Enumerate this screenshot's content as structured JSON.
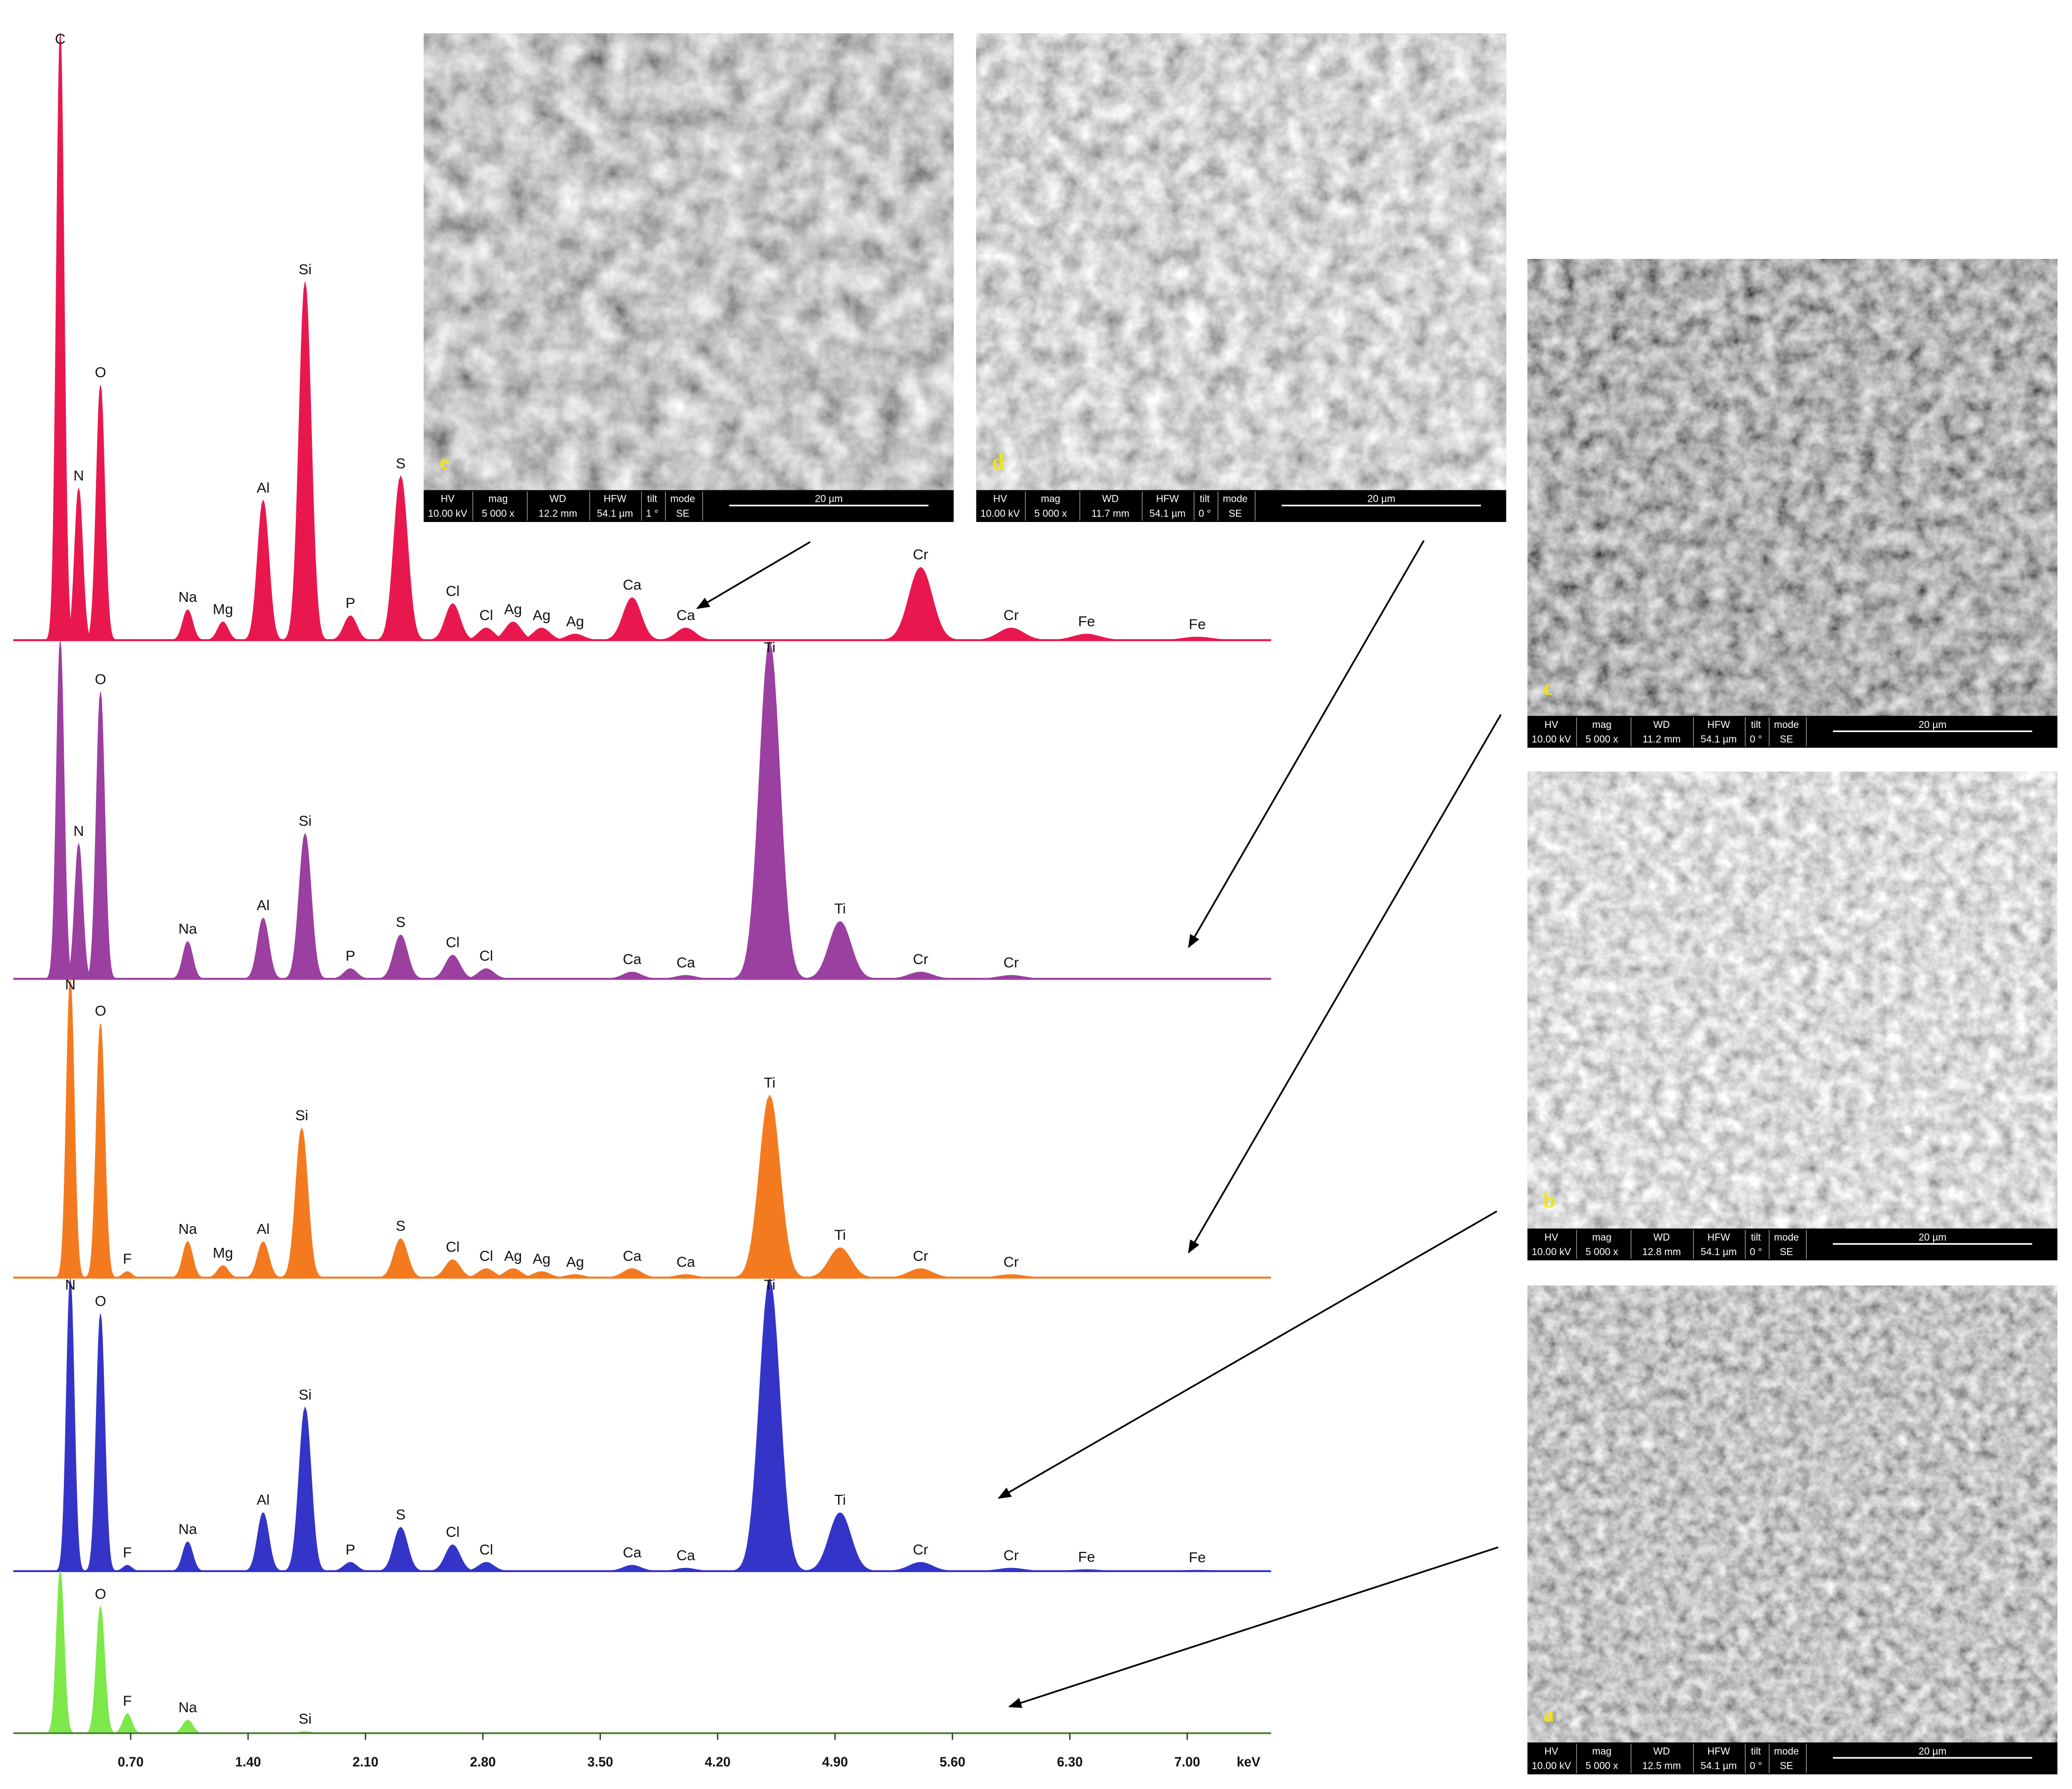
{
  "chart_data": [
    {
      "type": "spectrum",
      "color": "#e8184f",
      "xlim": [
        0,
        7.5
      ],
      "ylim": [
        0,
        100
      ],
      "categories": [
        "C",
        "N",
        "O",
        "Na",
        "Mg",
        "Al",
        "Si",
        "P",
        "S",
        "Cl",
        "Cl",
        "Ag",
        "Ag",
        "Ag",
        "Ca",
        "Ca",
        "Cr",
        "Cr",
        "Fe",
        "Fe"
      ],
      "x": [
        0.28,
        0.39,
        0.52,
        1.04,
        1.25,
        1.49,
        1.74,
        2.01,
        2.31,
        2.62,
        2.82,
        2.98,
        3.15,
        3.35,
        3.69,
        4.01,
        5.41,
        5.95,
        6.4,
        7.06
      ],
      "values": [
        100,
        25,
        42,
        5,
        3,
        23,
        59,
        4,
        27,
        6,
        2,
        3,
        2,
        1,
        7,
        2,
        12,
        2,
        1,
        0.5
      ]
    },
    {
      "type": "spectrum",
      "color": "#9b3fa0",
      "xlim": [
        0,
        7.5
      ],
      "ylim": [
        0,
        100
      ],
      "categories": [
        null,
        "N",
        "O",
        "Na",
        "Al",
        "Si",
        "P",
        "S",
        "Cl",
        "Cl",
        "Ca",
        "Ca",
        "Ti",
        "Ti",
        "Cr",
        "Cr"
      ],
      "x": [
        0.28,
        0.39,
        0.52,
        1.04,
        1.49,
        1.74,
        2.01,
        2.31,
        2.62,
        2.82,
        3.69,
        4.01,
        4.51,
        4.93,
        5.41,
        5.95
      ],
      "values": [
        100,
        40,
        85,
        11,
        18,
        43,
        3,
        13,
        7,
        3,
        2,
        1,
        100,
        17,
        2,
        1
      ]
    },
    {
      "type": "spectrum",
      "color": "#f47a20",
      "xlim": [
        0,
        7.5
      ],
      "ylim": [
        0,
        100
      ],
      "categories": [
        "N",
        "O",
        "F",
        "Na",
        "Mg",
        "Al",
        "Si",
        "S",
        "Cl",
        "Cl",
        "Ag",
        "Ag",
        "Ag",
        "Ca",
        "Ca",
        "Ti",
        "Ti",
        "Cr",
        "Cr"
      ],
      "x": [
        0.34,
        0.52,
        0.68,
        1.04,
        1.25,
        1.49,
        1.72,
        2.31,
        2.62,
        2.82,
        2.98,
        3.15,
        3.35,
        3.69,
        4.01,
        4.51,
        4.93,
        5.41,
        5.95
      ],
      "values": [
        100,
        85,
        2,
        12,
        4,
        12,
        50,
        13,
        6,
        3,
        3,
        2,
        1,
        3,
        1,
        61,
        10,
        3,
        1
      ]
    },
    {
      "type": "spectrum",
      "color": "#3434c8",
      "xlim": [
        0,
        7.5
      ],
      "ylim": [
        0,
        100
      ],
      "categories": [
        "N",
        "O",
        "F",
        "Na",
        "Al",
        "Si",
        "P",
        "S",
        "Cl",
        "Cl",
        "Ca",
        "Ca",
        "Ti",
        "Ti",
        "Cr",
        "Cr",
        "Fe",
        "Fe"
      ],
      "x": [
        0.34,
        0.52,
        0.68,
        1.04,
        1.49,
        1.74,
        2.01,
        2.31,
        2.62,
        2.82,
        3.69,
        4.01,
        4.51,
        4.93,
        5.41,
        5.95,
        6.4,
        7.06
      ],
      "values": [
        100,
        88,
        2,
        10,
        20,
        56,
        3,
        15,
        9,
        3,
        2,
        1,
        100,
        20,
        3,
        1,
        0.5,
        0.3
      ]
    },
    {
      "type": "spectrum",
      "color": "#7de84a",
      "xlim": [
        0,
        7.5
      ],
      "ylim": [
        0,
        100
      ],
      "categories": [
        null,
        "O",
        "F",
        "Na",
        "Si"
      ],
      "x": [
        0.28,
        0.52,
        0.68,
        1.04,
        1.74
      ],
      "values": [
        100,
        78,
        12,
        8,
        1
      ],
      "xticks": [
        {
          "value": 0.7,
          "label": "0.70"
        },
        {
          "value": 1.4,
          "label": "1.40"
        },
        {
          "value": 2.1,
          "label": "2.10"
        },
        {
          "value": 2.8,
          "label": "2.80"
        },
        {
          "value": 3.5,
          "label": "3.50"
        },
        {
          "value": 4.2,
          "label": "4.20"
        },
        {
          "value": 4.9,
          "label": "4.90"
        },
        {
          "value": 5.6,
          "label": "5.60"
        },
        {
          "value": 6.3,
          "label": "6.30"
        },
        {
          "value": 7.0,
          "label": "7.00"
        }
      ],
      "x_label": "keV"
    }
  ],
  "info_headers": [
    "HV",
    "mag",
    "WD",
    "HFW",
    "tilt",
    "mode"
  ],
  "micrographs": [
    {
      "letter": "e",
      "info": [
        "10.00 kV",
        "5 000 x",
        "12.2 mm",
        "54.1 µm",
        "1 °",
        "SE"
      ],
      "scale": "20 µm"
    },
    {
      "letter": "d",
      "info": [
        "10.00 kV",
        "5 000 x",
        "11.7 mm",
        "54.1 µm",
        "0 °",
        "SE"
      ],
      "scale": "20 µm"
    },
    {
      "letter": "c",
      "info": [
        "10.00 kV",
        "5 000 x",
        "11.2 mm",
        "54.1 µm",
        "0 °",
        "SE"
      ],
      "scale": "20 µm"
    },
    {
      "letter": "b",
      "info": [
        "10.00 kV",
        "5 000 x",
        "12.8 mm",
        "54.1 µm",
        "0 °",
        "SE"
      ],
      "scale": "20 µm"
    },
    {
      "letter": "a",
      "info": [
        "10.00 kV",
        "5 000 x",
        "12.5 mm",
        "54.1 µm",
        "0 °",
        "SE"
      ],
      "scale": "20 µm"
    }
  ]
}
